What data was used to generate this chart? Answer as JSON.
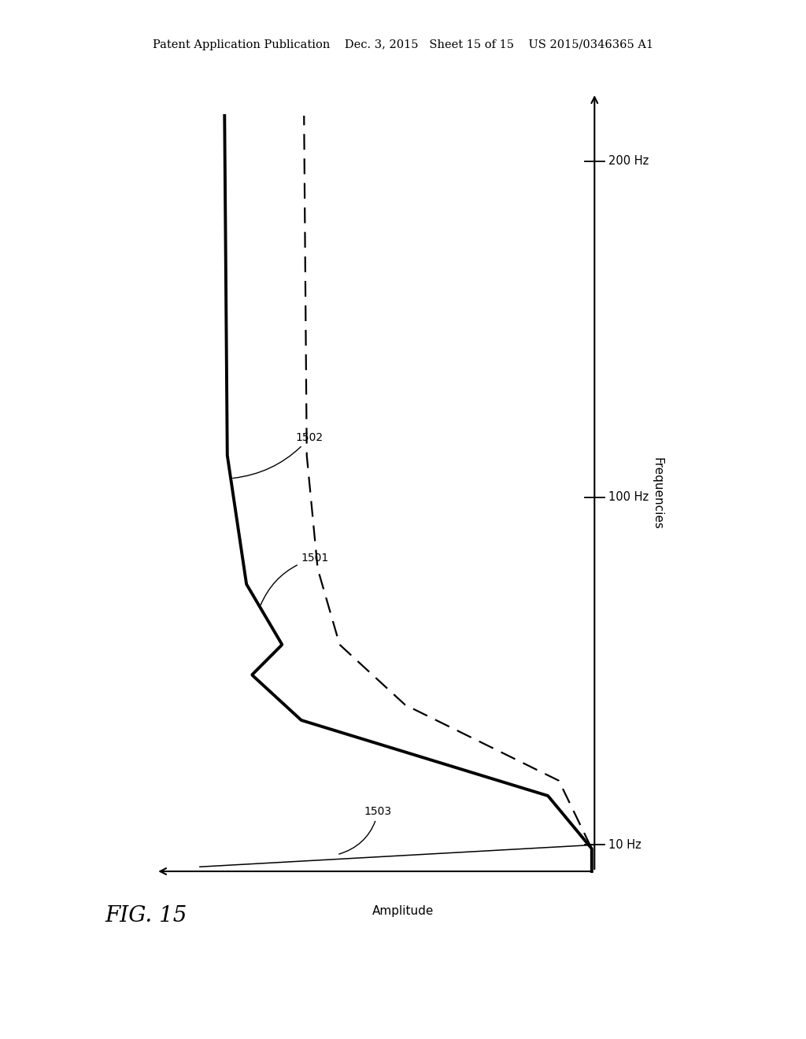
{
  "background_color": "#ffffff",
  "header_text": "Patent Application Publication    Dec. 3, 2015   Sheet 15 of 15    US 2015/0346365 A1",
  "header_fontsize": 10.5,
  "fig_label": "FIG. 15",
  "fig_label_fontsize": 20,
  "y_axis_label": "Frequencies",
  "x_axis_label": "Amplitude",
  "tick_200hz_label": "200 Hz",
  "tick_100hz_label": "100 Hz",
  "tick_10hz_label": "10 Hz",
  "label_1501": "1501",
  "label_1502": "1502",
  "label_1503": "1503",
  "curve_color": "#000000",
  "curve_lw_solid": 2.8,
  "curve_lw_dashed": 1.6,
  "line_lw_thin": 1.1,
  "axis_lw": 1.5
}
